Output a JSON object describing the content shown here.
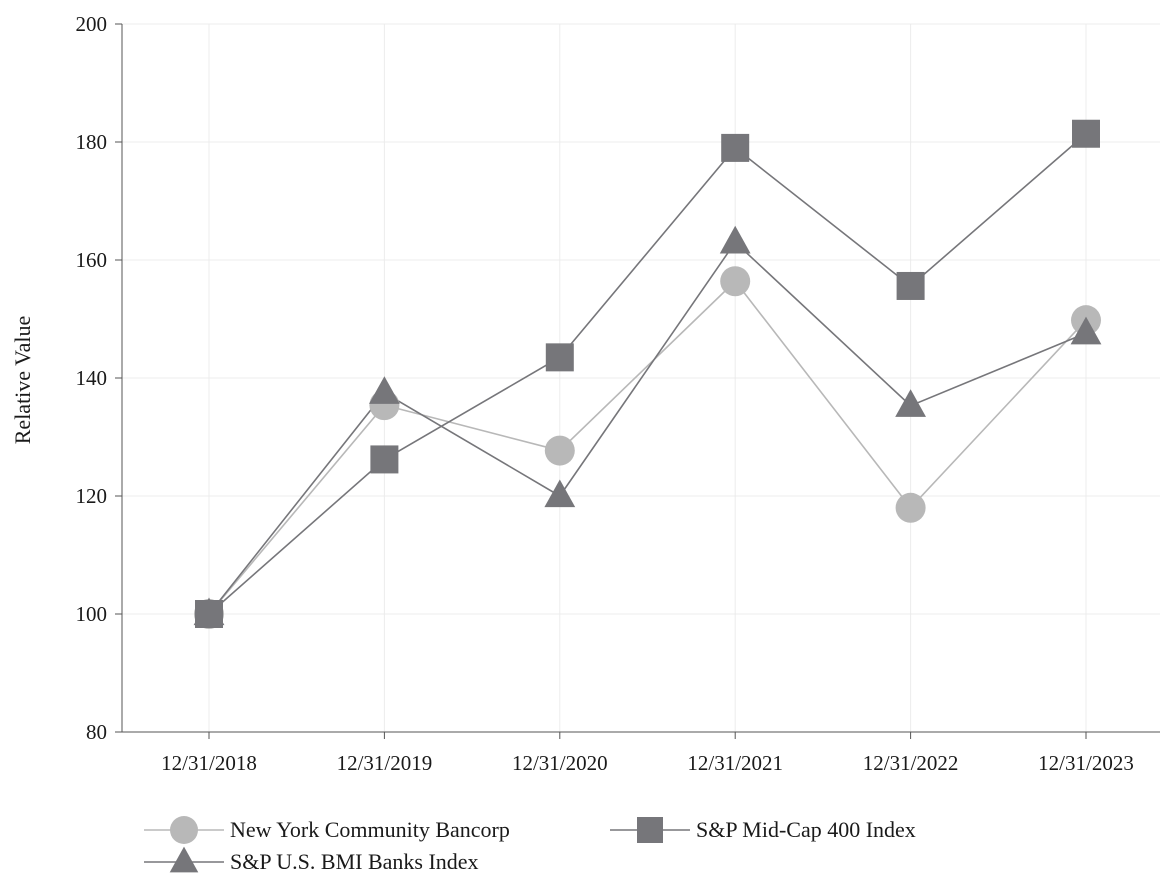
{
  "chart_data": {
    "type": "line",
    "title": "",
    "xlabel": "",
    "ylabel": "Relative Value",
    "categories": [
      "12/31/2018",
      "12/31/2019",
      "12/31/2020",
      "12/31/2021",
      "12/31/2022",
      "12/31/2023"
    ],
    "yticks": [
      "80",
      "100",
      "120",
      "140",
      "160",
      "180",
      "200"
    ],
    "ylim": [
      80,
      200
    ],
    "grid": true,
    "legend_position": "bottom-left",
    "series": [
      {
        "name": "New York Community Bancorp",
        "marker": "circle",
        "color": "#b8b8b8",
        "values": [
          100,
          135.4,
          127.7,
          156.4,
          118.0,
          149.8
        ]
      },
      {
        "name": "S&P Mid-Cap 400 Index",
        "marker": "square",
        "color": "#76767a",
        "values": [
          100,
          126.2,
          143.5,
          179.0,
          155.6,
          181.4
        ]
      },
      {
        "name": "S&P U.S. BMI Banks Index",
        "marker": "triangle",
        "color": "#76767a",
        "values": [
          100,
          137.5,
          120.0,
          163.0,
          135.3,
          147.6
        ]
      }
    ]
  }
}
